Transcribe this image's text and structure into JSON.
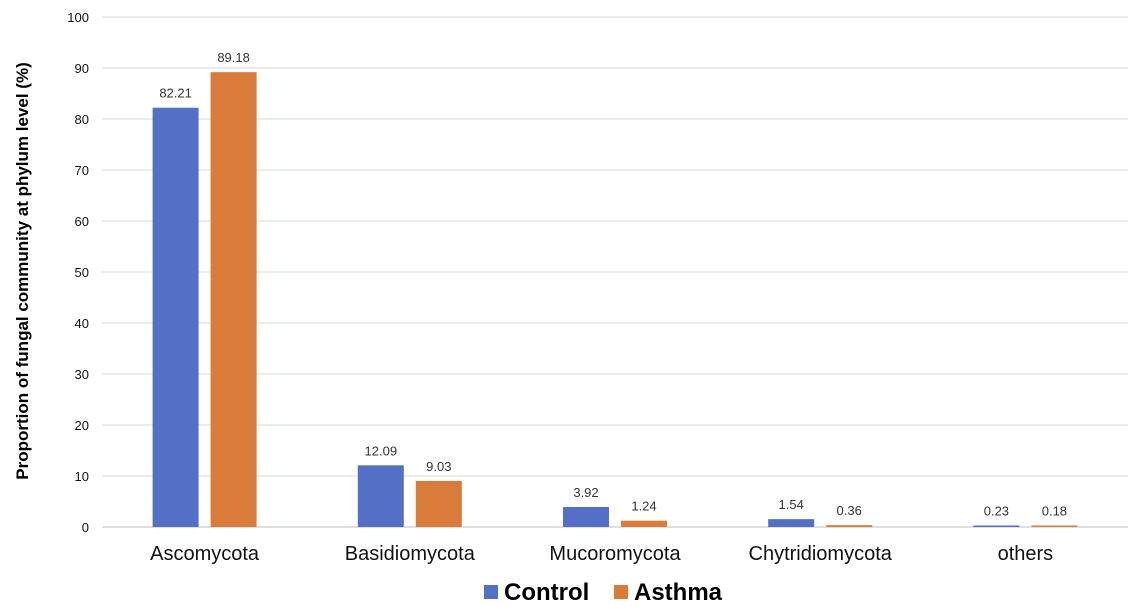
{
  "chart_data": {
    "type": "bar",
    "categories": [
      "Ascomycota",
      "Basidiomycota",
      "Mucoromycota",
      "Chytridiomycota",
      "others"
    ],
    "series": [
      {
        "name": "Control",
        "values": [
          82.21,
          12.09,
          3.92,
          1.54,
          0.23
        ],
        "labels": [
          "82.21",
          "12.09",
          "3.92",
          "1.54",
          "0.23"
        ],
        "color": "#5470c6"
      },
      {
        "name": "Asthma",
        "values": [
          89.18,
          9.03,
          1.24,
          0.36,
          0.18
        ],
        "labels": [
          "89.18",
          "9.03",
          "1.24",
          "0.36",
          "0.18"
        ],
        "color": "#d97b3a"
      }
    ],
    "ylabel": "Proportion of fungal community at phylum level (%)",
    "xlabel": "",
    "ylim": [
      0,
      100
    ],
    "yticks": [
      "0",
      "10",
      "20",
      "30",
      "40",
      "50",
      "60",
      "70",
      "80",
      "90",
      "100"
    ],
    "grid": true,
    "legend": "bottom-center"
  }
}
